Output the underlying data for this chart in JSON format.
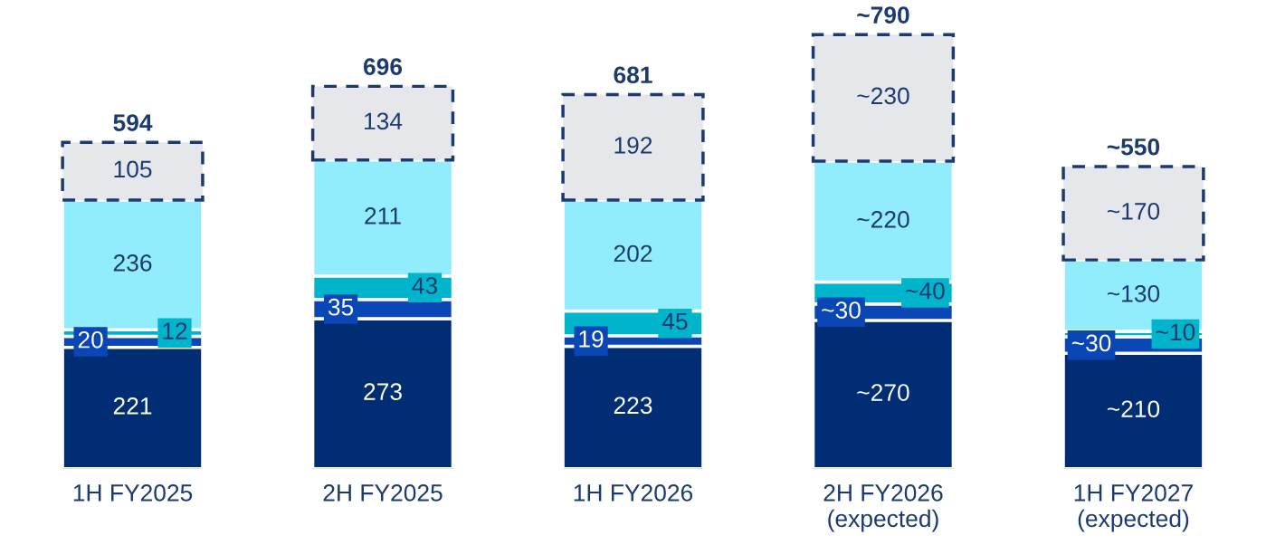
{
  "chart_data": {
    "type": "bar",
    "stacked": true,
    "categories": [
      "1H FY2025",
      "2H FY2025",
      "1H FY2026",
      "2H FY2026\n(expected)",
      "1H FY2027\n(expected)"
    ],
    "series": [
      {
        "color": "#002d74",
        "values": [
          221,
          273,
          223,
          270,
          210
        ],
        "value_labels": [
          "221",
          "273",
          "223",
          "~270",
          "~210"
        ]
      },
      {
        "color": "#0a46b4",
        "values": [
          20,
          35,
          19,
          30,
          30
        ],
        "value_labels": [
          "20",
          "35",
          "19",
          "~30",
          "~30"
        ]
      },
      {
        "color": "#00b4cc",
        "values": [
          12,
          43,
          45,
          40,
          10
        ],
        "value_labels": [
          "12",
          "43",
          "45",
          "~40",
          "~10"
        ]
      },
      {
        "color": "#91ecfc",
        "values": [
          236,
          211,
          202,
          220,
          130
        ],
        "value_labels": [
          "236",
          "211",
          "202",
          "~220",
          "~130"
        ]
      },
      {
        "color": "#e6e7eb",
        "values": [
          105,
          134,
          192,
          230,
          170
        ],
        "value_labels": [
          "105",
          "134",
          "192",
          "~230",
          "~170"
        ],
        "line_style": "dashed"
      }
    ],
    "totals": [
      "594",
      "696",
      "681",
      "~790",
      "~550"
    ],
    "legend": false,
    "grid": false,
    "tick_labels": "x"
  }
}
